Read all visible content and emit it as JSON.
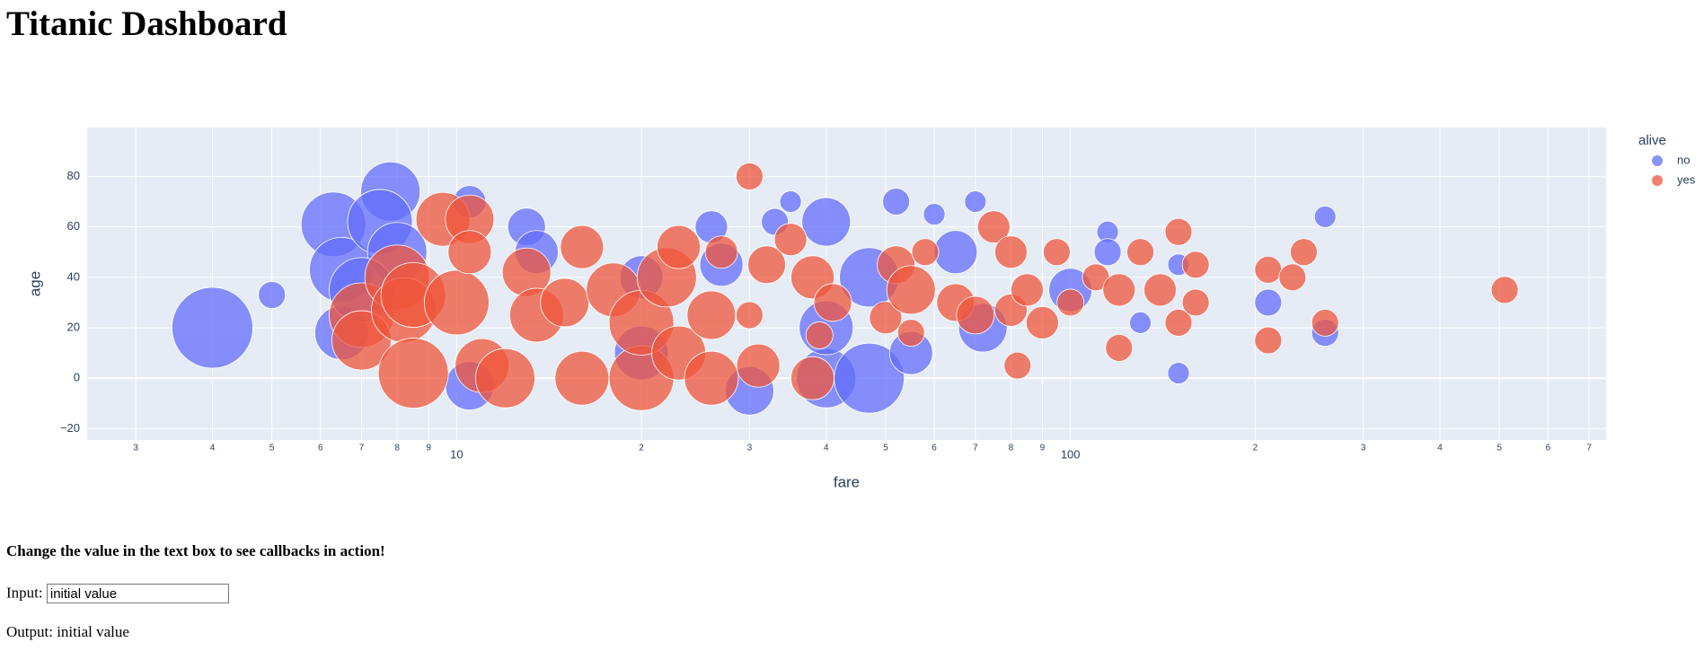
{
  "header": {
    "title": "Titanic Dashboard"
  },
  "chart_data": {
    "type": "scatter",
    "x_label": "fare",
    "y_label": "age",
    "legend_title": "alive",
    "xlog": true,
    "grid": true,
    "xlim": [
      2.5,
      746
    ],
    "ylim": [
      -24.5,
      99.4
    ],
    "xticks": [
      3,
      4,
      5,
      6,
      7,
      8,
      9,
      10,
      {
        "value": 20,
        "label": "2"
      },
      {
        "value": 30,
        "label": "3"
      },
      {
        "value": 40,
        "label": "4"
      },
      {
        "value": 50,
        "label": "5"
      },
      {
        "value": 60,
        "label": "6"
      },
      {
        "value": 70,
        "label": "7"
      },
      {
        "value": 80,
        "label": "8"
      },
      {
        "value": 90,
        "label": "9"
      },
      100,
      {
        "value": 200,
        "label": "2"
      },
      {
        "value": 300,
        "label": "3"
      },
      {
        "value": 400,
        "label": "4"
      },
      {
        "value": 500,
        "label": "5"
      },
      {
        "value": 600,
        "label": "6"
      },
      {
        "value": 700,
        "label": "7"
      }
    ],
    "yticks": [
      {
        "value": -20,
        "label": "−20"
      },
      0,
      20,
      40,
      60,
      80
    ],
    "series": [
      {
        "name": "no",
        "color": "#636efa",
        "x": [
          4,
          5,
          6.3,
          6.5,
          6.5,
          7.8,
          7.5,
          8,
          7,
          10.5,
          10.5,
          13,
          13.5,
          20,
          20,
          26,
          27,
          30,
          33,
          35,
          40,
          40,
          40,
          47,
          47,
          52,
          55,
          60,
          65,
          70,
          72,
          100,
          115,
          115,
          130,
          150,
          210,
          260,
          260,
          150
        ],
        "values": [
          20,
          33,
          61,
          43,
          18,
          74,
          62,
          50,
          35,
          70,
          -3,
          60,
          50,
          40,
          10,
          60,
          45,
          -5,
          62,
          70,
          62,
          0,
          20,
          0,
          40,
          70,
          10,
          65,
          50,
          70,
          20,
          35,
          58,
          50,
          22,
          2,
          30,
          64,
          18,
          45
        ],
        "sizes": [
          75,
          25,
          60,
          60,
          50,
          55,
          60,
          55,
          60,
          30,
          45,
          35,
          40,
          40,
          50,
          30,
          40,
          45,
          25,
          20,
          45,
          55,
          50,
          65,
          55,
          25,
          40,
          20,
          40,
          20,
          45,
          40,
          20,
          25,
          20,
          20,
          25,
          20,
          25,
          20
        ]
      },
      {
        "name": "yes",
        "color": "#EF553B",
        "x": [
          7,
          7,
          8,
          8.2,
          8.5,
          8.5,
          9.5,
          10,
          10.5,
          10.5,
          11,
          12,
          13,
          13.5,
          15,
          16,
          16,
          18,
          20,
          20,
          22,
          23,
          23,
          26,
          26,
          27,
          30,
          30,
          31,
          32,
          35,
          38,
          38,
          39,
          41,
          50,
          52,
          55,
          55,
          58,
          65,
          70,
          75,
          80,
          80,
          82,
          85,
          90,
          95,
          100,
          110,
          120,
          120,
          130,
          140,
          150,
          150,
          160,
          160,
          210,
          210,
          230,
          240,
          260,
          510
        ],
        "values": [
          25,
          15,
          40,
          27,
          2,
          33,
          63,
          30,
          63,
          50,
          5,
          0,
          42,
          25,
          30,
          52,
          0,
          35,
          0,
          22,
          40,
          10,
          52,
          25,
          0,
          50,
          80,
          25,
          5,
          45,
          55,
          40,
          0,
          17,
          30,
          24,
          45,
          35,
          18,
          50,
          30,
          25,
          60,
          50,
          27,
          5,
          35,
          22,
          50,
          30,
          40,
          35,
          12,
          50,
          35,
          58,
          22,
          45,
          30,
          43,
          15,
          40,
          50,
          22,
          35
        ],
        "sizes": [
          60,
          55,
          60,
          60,
          65,
          60,
          50,
          60,
          45,
          40,
          50,
          55,
          45,
          50,
          45,
          40,
          50,
          50,
          60,
          60,
          55,
          50,
          40,
          45,
          50,
          30,
          25,
          25,
          40,
          35,
          30,
          40,
          40,
          25,
          35,
          30,
          35,
          45,
          25,
          25,
          35,
          35,
          30,
          30,
          30,
          25,
          30,
          30,
          25,
          25,
          25,
          30,
          25,
          25,
          30,
          25,
          25,
          25,
          25,
          25,
          25,
          25,
          25,
          25,
          25
        ]
      }
    ]
  },
  "form": {
    "hint": "Change the value in the text box to see callbacks in action!",
    "input_label": "Input:",
    "input_value": "initial value",
    "output": "Output: initial value"
  }
}
